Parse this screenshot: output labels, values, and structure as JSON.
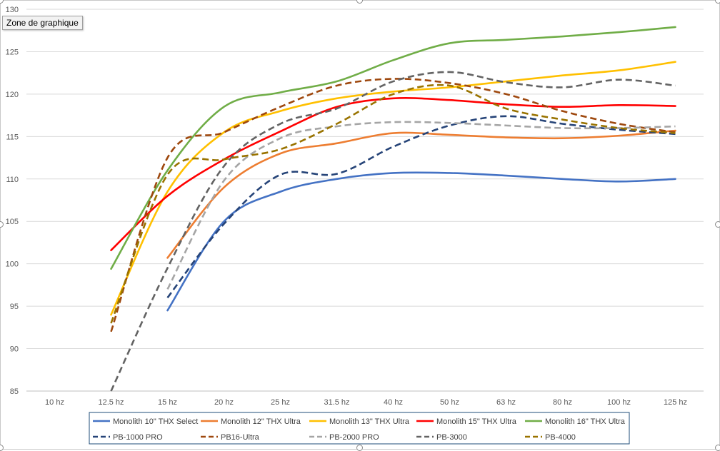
{
  "tooltip": "Zone de graphique",
  "chart_data": {
    "type": "line",
    "title": "",
    "xlabel": "",
    "ylabel": "",
    "ylim": [
      85,
      130
    ],
    "yticks": [
      85,
      90,
      95,
      100,
      105,
      110,
      115,
      120,
      125,
      130
    ],
    "grid": true,
    "legend_position": "bottom",
    "categories": [
      "10 hz",
      "12.5 hz",
      "15 hz",
      "20 hz",
      "25 hz",
      "31.5 hz",
      "40 hz",
      "50 hz",
      "63 hz",
      "80 hz",
      "100 hz",
      "125 hz"
    ],
    "series": [
      {
        "name": "Monolith 10\" THX Select",
        "color": "#4472C4",
        "dash": false,
        "values": [
          null,
          null,
          94.5,
          105,
          108.5,
          110,
          110.7,
          110.7,
          110.4,
          110,
          109.7,
          110
        ]
      },
      {
        "name": "Monolith 12\" THX Ultra",
        "color": "#ED7D31",
        "dash": false,
        "values": [
          null,
          null,
          100.7,
          109,
          113,
          114.2,
          115.4,
          115.2,
          114.9,
          114.8,
          115.1,
          115.7
        ]
      },
      {
        "name": "Monolith 13\" THX Ultra",
        "color": "#FFC000",
        "dash": false,
        "values": [
          null,
          94,
          108.5,
          115.5,
          118,
          119.5,
          120.3,
          120.8,
          121.5,
          122.2,
          122.8,
          123.8
        ]
      },
      {
        "name": "Monolith 15\" THX Ultra",
        "color": "#FF0000",
        "dash": false,
        "values": [
          null,
          101.6,
          108,
          112.3,
          115.6,
          118.5,
          119.5,
          119.3,
          118.8,
          118.5,
          118.7,
          118.6
        ]
      },
      {
        "name": "Monolith 16\" THX Ultra",
        "color": "#70AD47",
        "dash": false,
        "values": [
          null,
          99.4,
          111,
          118.5,
          120.2,
          121.5,
          124,
          126,
          126.4,
          126.8,
          127.3,
          127.9
        ]
      },
      {
        "name": "PB-1000 PRO",
        "color": "#264478",
        "dash": true,
        "values": [
          null,
          null,
          96,
          104.7,
          110.5,
          110.6,
          113.8,
          116.3,
          117.4,
          116.5,
          115.8,
          115.3
        ]
      },
      {
        "name": "PB16-Ultra",
        "color": "#9E480E",
        "dash": true,
        "values": [
          null,
          92,
          112.5,
          115.5,
          118.5,
          121,
          121.8,
          121.3,
          120,
          118,
          116.5,
          115.5
        ]
      },
      {
        "name": "PB-2000 PRO",
        "color": "#A5A5A5",
        "dash": true,
        "values": [
          null,
          null,
          97,
          109.8,
          114.8,
          116.2,
          116.7,
          116.6,
          116.3,
          116,
          116,
          116.2
        ]
      },
      {
        "name": "PB-3000",
        "color": "#636363",
        "dash": true,
        "values": [
          null,
          85,
          99.5,
          111.5,
          116.5,
          118.3,
          121.5,
          122.6,
          121.4,
          120.8,
          121.7,
          121
        ]
      },
      {
        "name": "PB-4000",
        "color": "#997300",
        "dash": true,
        "values": [
          null,
          93,
          110.5,
          112.3,
          113.5,
          116.5,
          120,
          121,
          118.3,
          117,
          116,
          115.4
        ]
      }
    ]
  }
}
